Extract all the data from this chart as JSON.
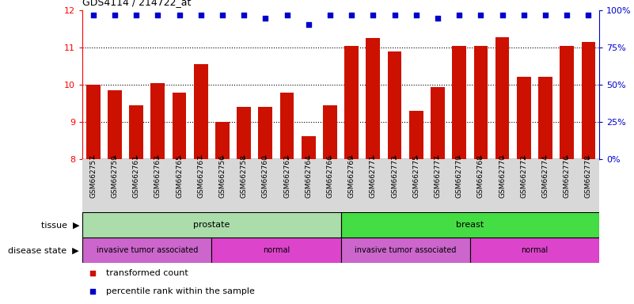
{
  "title": "GDS4114 / 214722_at",
  "samples": [
    "GSM662757",
    "GSM662759",
    "GSM662761",
    "GSM662763",
    "GSM662765",
    "GSM662767",
    "GSM662756",
    "GSM662758",
    "GSM662760",
    "GSM662762",
    "GSM662764",
    "GSM662766",
    "GSM662769",
    "GSM662771",
    "GSM662773",
    "GSM662775",
    "GSM662777",
    "GSM662779",
    "GSM662768",
    "GSM662770",
    "GSM662772",
    "GSM662774",
    "GSM662776",
    "GSM662778"
  ],
  "bar_values": [
    10.0,
    9.85,
    9.45,
    10.05,
    9.78,
    10.55,
    9.0,
    9.4,
    9.4,
    9.78,
    8.62,
    9.45,
    11.05,
    11.25,
    10.9,
    9.3,
    9.93,
    11.05,
    11.05,
    11.28,
    10.22,
    10.22,
    11.05,
    11.15
  ],
  "percentile_y": [
    11.88,
    11.88,
    11.88,
    11.88,
    11.88,
    11.88,
    11.88,
    11.88,
    11.78,
    11.88,
    11.62,
    11.88,
    11.88,
    11.88,
    11.88,
    11.88,
    11.78,
    11.88,
    11.88,
    11.88,
    11.88,
    11.88,
    11.88,
    11.88
  ],
  "ylim_left": [
    8,
    12
  ],
  "ylim_right": [
    0,
    100
  ],
  "yticks_left": [
    8,
    9,
    10,
    11,
    12
  ],
  "yticks_right": [
    0,
    25,
    50,
    75,
    100
  ],
  "bar_color": "#cc1100",
  "dot_color": "#0000cc",
  "bar_bottom": 8,
  "tissue_groups": [
    {
      "label": "prostate",
      "start": 0,
      "end": 12,
      "color": "#aaddaa"
    },
    {
      "label": "breast",
      "start": 12,
      "end": 24,
      "color": "#44dd44"
    }
  ],
  "disease_groups": [
    {
      "label": "invasive tumor associated",
      "start": 0,
      "end": 6,
      "color": "#cc66cc"
    },
    {
      "label": "normal",
      "start": 6,
      "end": 12,
      "color": "#dd44cc"
    },
    {
      "label": "invasive tumor associated",
      "start": 12,
      "end": 18,
      "color": "#cc66cc"
    },
    {
      "label": "normal",
      "start": 18,
      "end": 24,
      "color": "#dd44cc"
    }
  ],
  "chart_bg": "#ffffff",
  "xtick_bg": "#d8d8d8",
  "grid_color": "#000000"
}
